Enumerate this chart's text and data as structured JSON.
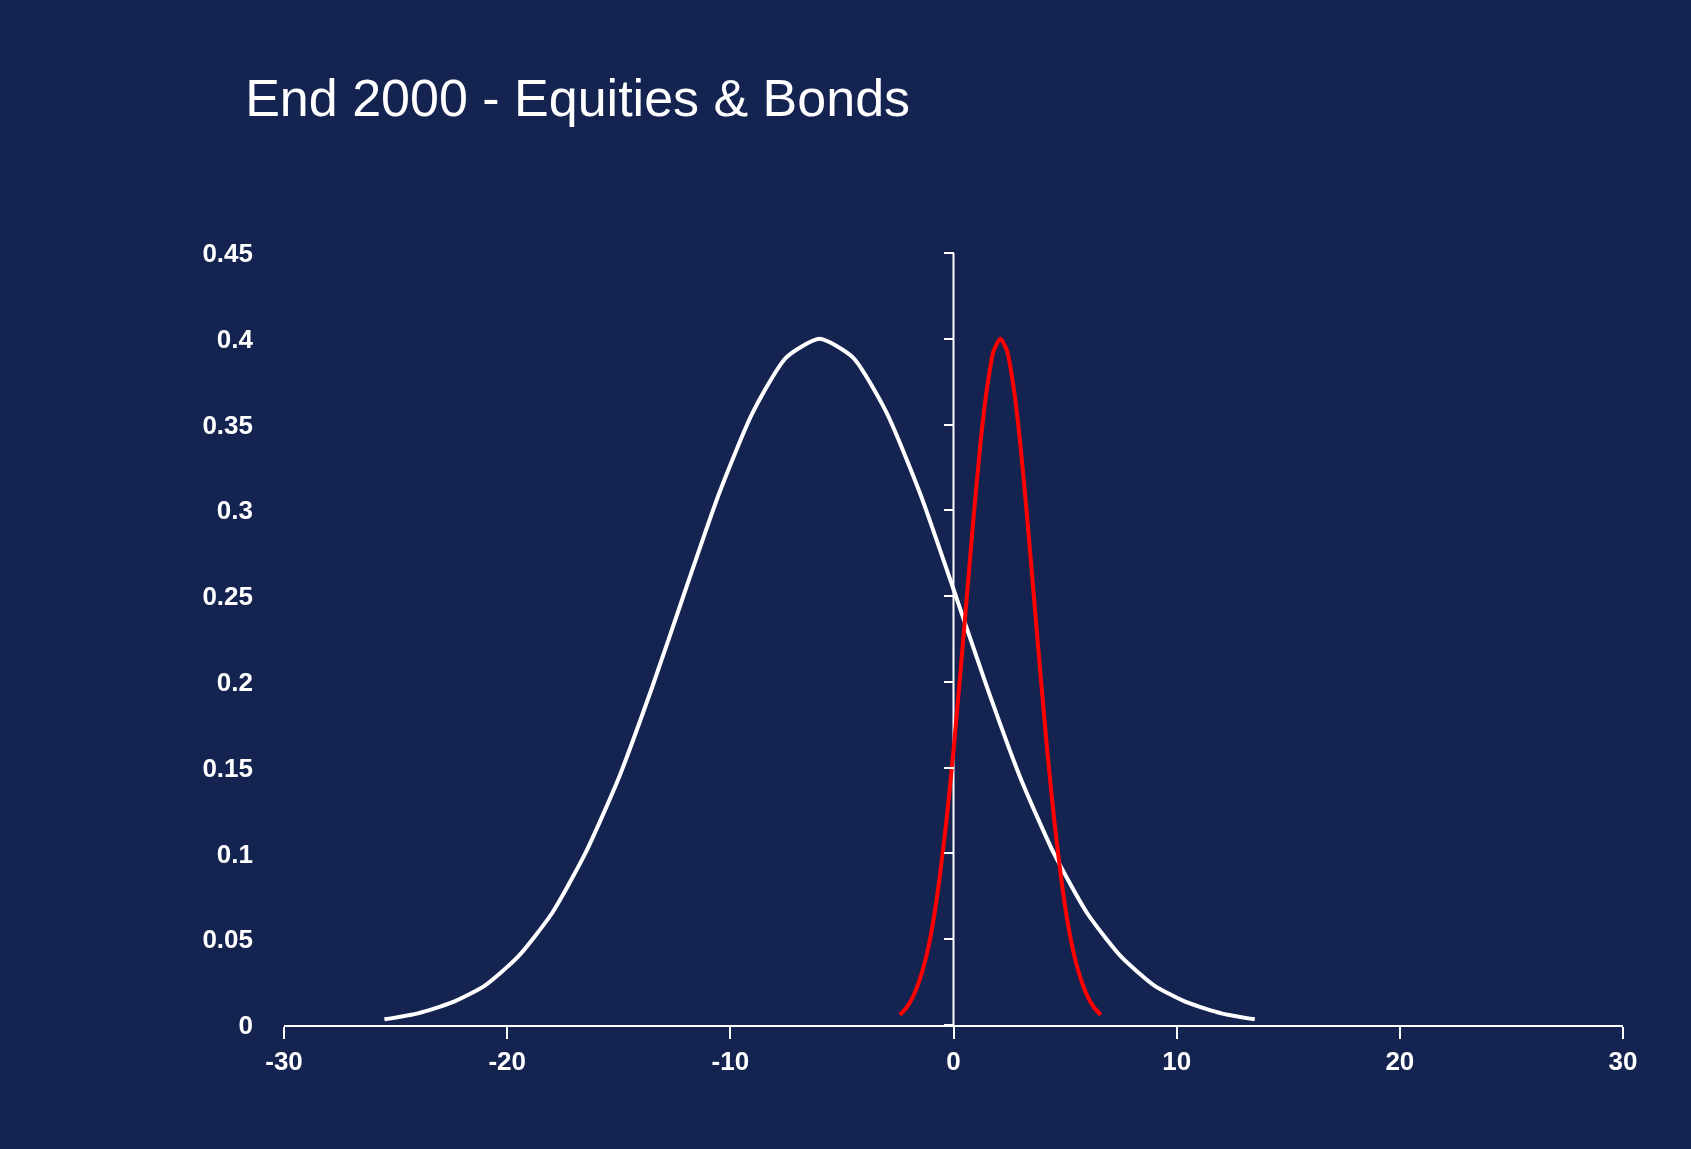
{
  "chart_data": {
    "type": "line",
    "title": "End 2000 - Equities & Bonds",
    "series": [
      {
        "color": "#ffffff",
        "x": [
          -25.5,
          -24,
          -22.5,
          -21,
          -19.5,
          -18,
          -16.5,
          -15,
          -13.5,
          -12,
          -10.5,
          -9,
          -7.5,
          -6,
          -4.5,
          -3,
          -1.5,
          0,
          1.5,
          3,
          4.5,
          6,
          7.5,
          9,
          10.5,
          12,
          13.5
        ],
        "values": [
          0.0033,
          0.0068,
          0.013,
          0.023,
          0.04,
          0.065,
          0.1,
          0.144,
          0.197,
          0.254,
          0.31,
          0.357,
          0.389,
          0.4,
          0.389,
          0.357,
          0.31,
          0.254,
          0.197,
          0.144,
          0.1,
          0.065,
          0.04,
          0.023,
          0.013,
          0.0068,
          0.0033
        ]
      },
      {
        "color": "#ff0000",
        "x": [
          -2.4,
          -2.1,
          -1.8,
          -1.5,
          -1.2,
          -0.9,
          -0.6,
          -0.3,
          0,
          0.3,
          0.6,
          0.9,
          1.2,
          1.5,
          1.8,
          2.1,
          2.4,
          2.7,
          3.0,
          3.3,
          3.6,
          3.9,
          4.2,
          4.5,
          4.8,
          5.1,
          5.4,
          5.7,
          6.0,
          6.3,
          6.6
        ],
        "values": [
          0.0059,
          0.0102,
          0.0169,
          0.027,
          0.041,
          0.061,
          0.088,
          0.121,
          0.16,
          0.204,
          0.25,
          0.296,
          0.338,
          0.371,
          0.393,
          0.4,
          0.393,
          0.371,
          0.338,
          0.296,
          0.25,
          0.204,
          0.16,
          0.121,
          0.088,
          0.061,
          0.041,
          0.027,
          0.0169,
          0.0102,
          0.0059
        ]
      }
    ],
    "xlim": [
      -30,
      30
    ],
    "xticks": [
      -30,
      -20,
      -10,
      0,
      10,
      20,
      30
    ],
    "ylim": [
      0,
      0.45
    ],
    "yticks": [
      0,
      0.05,
      0.1,
      0.15,
      0.2,
      0.25,
      0.3,
      0.35,
      0.4,
      0.45
    ],
    "ref_lines": [
      {
        "axis": "x",
        "value": 0,
        "color": "#ffffff"
      }
    ],
    "grid": false,
    "marker": "none",
    "line_style": "solid"
  }
}
